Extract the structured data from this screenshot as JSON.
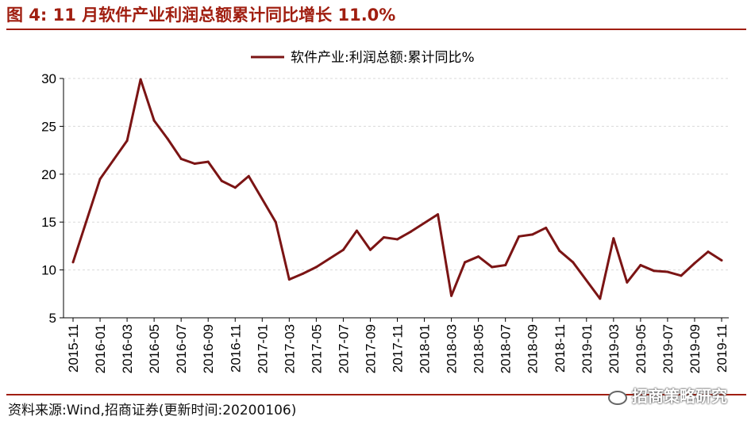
{
  "header": {
    "title": "图 4:  11 月软件产业利润总额累计同比增长 11.0%"
  },
  "footer": {
    "source": "资料来源:Wind,招商证券(更新时间:20200106)",
    "watermark": "招商策略研究"
  },
  "colors": {
    "brand": "#a01e10",
    "line": "#7b1414",
    "grid": "#d9d9d9"
  },
  "chart_data": {
    "type": "line",
    "title": "",
    "xlabel": "",
    "ylabel": "",
    "ylim": [
      5,
      30
    ],
    "yticks": [
      5,
      10,
      15,
      20,
      25,
      30
    ],
    "grid": true,
    "legend_position": "top",
    "x_tick_labels": [
      "2015-11",
      "2016-01",
      "2016-03",
      "2016-05",
      "2016-07",
      "2016-09",
      "2016-11",
      "2017-01",
      "2017-03",
      "2017-05",
      "2017-07",
      "2017-09",
      "2017-11",
      "2018-01",
      "2018-03",
      "2018-05",
      "2018-07",
      "2018-09",
      "2018-11",
      "2019-01",
      "2019-03",
      "2019-05",
      "2019-07",
      "2019-09",
      "2019-11"
    ],
    "series": [
      {
        "name": "软件产业:利润总额:累计同比%",
        "x": [
          "2015-11",
          "2016-01",
          "2016-02",
          "2016-03",
          "2016-04",
          "2016-05",
          "2016-06",
          "2016-07",
          "2016-08",
          "2016-09",
          "2016-10",
          "2016-11",
          "2016-12",
          "2017-02",
          "2017-03",
          "2017-04",
          "2017-05",
          "2017-06",
          "2017-07",
          "2017-08",
          "2017-09",
          "2017-10",
          "2017-11",
          "2017-12",
          "2018-02",
          "2018-03",
          "2018-04",
          "2018-05",
          "2018-06",
          "2018-07",
          "2018-08",
          "2018-09",
          "2018-10",
          "2018-11",
          "2018-12",
          "2019-02",
          "2019-03",
          "2019-04",
          "2019-05",
          "2019-06",
          "2019-07",
          "2019-08",
          "2019-09",
          "2019-10",
          "2019-11"
        ],
        "values": [
          10.8,
          19.5,
          21.5,
          23.5,
          29.9,
          25.6,
          23.7,
          21.6,
          21.1,
          21.3,
          19.3,
          18.6,
          19.8,
          15.0,
          9.0,
          9.6,
          10.3,
          11.2,
          12.1,
          14.1,
          12.1,
          13.4,
          13.2,
          14.0,
          15.8,
          7.3,
          10.8,
          11.4,
          10.3,
          10.5,
          13.5,
          13.7,
          14.4,
          12.0,
          10.8,
          7.0,
          13.3,
          8.7,
          10.5,
          9.9,
          9.8,
          9.4,
          10.7,
          11.9,
          11.0
        ]
      }
    ]
  }
}
